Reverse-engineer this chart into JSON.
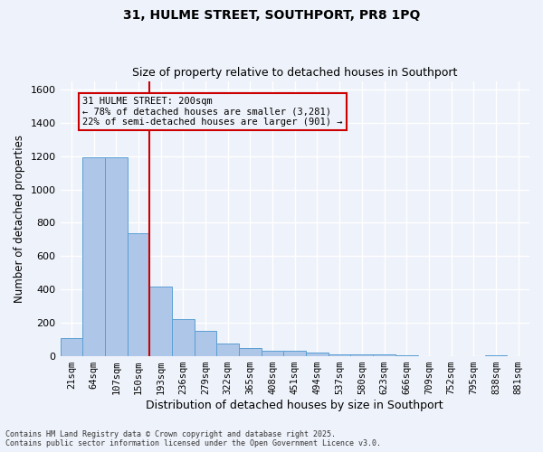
{
  "title1": "31, HULME STREET, SOUTHPORT, PR8 1PQ",
  "title2": "Size of property relative to detached houses in Southport",
  "xlabel": "Distribution of detached houses by size in Southport",
  "ylabel": "Number of detached properties",
  "categories": [
    "21sqm",
    "64sqm",
    "107sqm",
    "150sqm",
    "193sqm",
    "236sqm",
    "279sqm",
    "322sqm",
    "365sqm",
    "408sqm",
    "451sqm",
    "494sqm",
    "537sqm",
    "580sqm",
    "623sqm",
    "666sqm",
    "709sqm",
    "752sqm",
    "795sqm",
    "838sqm",
    "881sqm"
  ],
  "values": [
    110,
    1190,
    1190,
    740,
    420,
    225,
    150,
    75,
    50,
    35,
    35,
    20,
    10,
    10,
    10,
    5,
    0,
    0,
    0,
    5,
    0
  ],
  "bar_color": "#aec6e8",
  "bar_edge_color": "#5a9fd4",
  "vline_index": 4,
  "vline_color": "#cc0000",
  "annotation_text": "31 HULME STREET: 200sqm\n← 78% of detached houses are smaller (3,281)\n22% of semi-detached houses are larger (901) →",
  "annotation_box_color": "#cc0000",
  "ylim": [
    0,
    1650
  ],
  "yticks": [
    0,
    200,
    400,
    600,
    800,
    1000,
    1200,
    1400,
    1600
  ],
  "footnote1": "Contains HM Land Registry data © Crown copyright and database right 2025.",
  "footnote2": "Contains public sector information licensed under the Open Government Licence v3.0.",
  "bg_color": "#eef2fa",
  "grid_color": "#ffffff"
}
